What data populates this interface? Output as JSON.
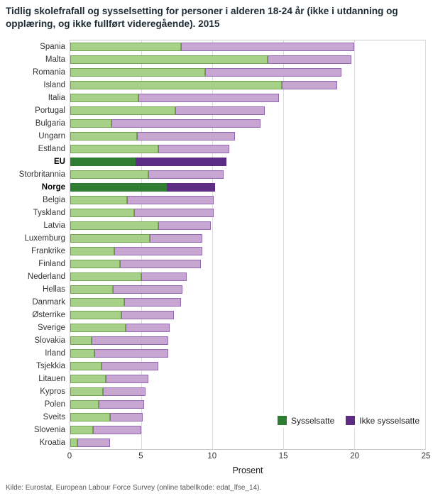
{
  "title": "Tidlig skolefrafall og sysselsetting for personer i alderen 18-24 år (ikke i utdanning og opplæring, og ikke fullført videregående). 2015",
  "source": "Kilde: Eurostat, European Labour Force Survey (online tabellkode: edat_lfse_14).",
  "chart_data": {
    "type": "bar",
    "orientation": "horizontal",
    "stacked": true,
    "title": "Tidlig skolefrafall og sysselsetting for personer i alderen 18-24 år (ikke i utdanning og opplæring, og ikke fullført videregående). 2015",
    "xlabel": "Prosent",
    "xlim": [
      0,
      25
    ],
    "xticks": [
      0,
      5,
      10,
      15,
      20,
      25
    ],
    "grid": true,
    "legend_position": "inside-bottom-right",
    "categories": [
      "Spania",
      "Malta",
      "Romania",
      "Island",
      "Italia",
      "Portugal",
      "Bulgaria",
      "Ungarn",
      "Estland",
      "EU",
      "Storbritannia",
      "Norge",
      "Belgia",
      "Tyskland",
      "Latvia",
      "Luxemburg",
      "Frankrike",
      "Finland",
      "Nederland",
      "Hellas",
      "Danmark",
      "Østerrike",
      "Sverige",
      "Slovakia",
      "Irland",
      "Tsjekkia",
      "Litauen",
      "Kypros",
      "Polen",
      "Sveits",
      "Slovenia",
      "Kroatia"
    ],
    "series": [
      {
        "name": "Sysselsatte",
        "values": [
          7.8,
          13.9,
          9.5,
          14.9,
          4.8,
          7.4,
          2.9,
          4.7,
          6.2,
          4.6,
          5.5,
          6.8,
          4.0,
          4.5,
          6.2,
          5.6,
          3.1,
          3.5,
          5.0,
          3.0,
          3.8,
          3.6,
          3.9,
          1.5,
          1.7,
          2.2,
          2.5,
          2.3,
          2.0,
          2.8,
          1.6,
          0.5
        ]
      },
      {
        "name": "Ikke sysselsatte",
        "values": [
          12.2,
          5.9,
          9.6,
          3.9,
          9.9,
          6.3,
          10.5,
          6.9,
          5.0,
          6.4,
          5.3,
          3.4,
          6.1,
          5.6,
          3.7,
          3.7,
          6.2,
          5.7,
          3.2,
          4.9,
          4.0,
          3.7,
          3.1,
          5.4,
          5.2,
          4.0,
          3.0,
          3.0,
          3.2,
          2.3,
          3.4,
          2.3
        ]
      }
    ],
    "totals": [
      20.0,
      19.8,
      19.1,
      18.8,
      14.7,
      13.7,
      13.4,
      11.6,
      11.2,
      11.0,
      10.8,
      10.2,
      10.1,
      10.1,
      9.9,
      9.3,
      9.3,
      9.2,
      8.2,
      7.9,
      7.8,
      7.3,
      7.0,
      6.9,
      6.9,
      6.2,
      5.5,
      5.3,
      5.2,
      5.1,
      5.0,
      2.8
    ],
    "highlighted_categories": [
      "EU",
      "Norge"
    ],
    "colors": {
      "sysselsatte_fill": "#a7d089",
      "sysselsatte_border": "#73a551",
      "ikke_sysselsatte_fill": "#c7a7d2",
      "ikke_sysselsatte_border": "#9467ae",
      "sysselsatte_highlight": "#2e7d32",
      "ikke_sysselsatte_highlight": "#5c2d82",
      "gridline": "#dcdcdc",
      "plot_border": "#c9c9c9"
    }
  }
}
